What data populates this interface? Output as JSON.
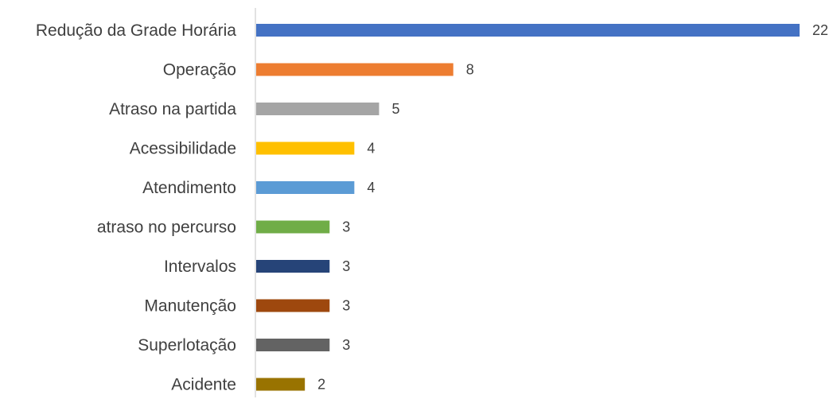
{
  "chart_data": {
    "type": "bar",
    "orientation": "horizontal",
    "categories": [
      "Redução da Grade Horária",
      "Operação",
      "Atraso na partida",
      "Acessibilidade",
      "Atendimento",
      "atraso no percurso",
      "Intervalos",
      "Manutenção",
      "Superlotação",
      "Acidente"
    ],
    "values": [
      22,
      8,
      5,
      4,
      4,
      3,
      3,
      3,
      3,
      2
    ],
    "colors": [
      "#4472C4",
      "#ED7D31",
      "#A5A5A5",
      "#FFC000",
      "#5B9BD5",
      "#70AD47",
      "#264478",
      "#9E480E",
      "#636363",
      "#997300"
    ],
    "xlim": [
      0,
      22
    ],
    "grid": false,
    "legend": "none",
    "data_labels": true
  }
}
